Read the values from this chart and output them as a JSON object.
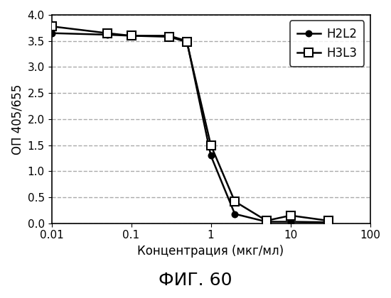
{
  "title": "ФИГ. 60",
  "ylabel": "ОП 405/655",
  "xlabel": "Концентрация (мкг/мл)",
  "xlim": [
    0.01,
    100
  ],
  "ylim": [
    0,
    4
  ],
  "yticks": [
    0,
    0.5,
    1.0,
    1.5,
    2.0,
    2.5,
    3.0,
    3.5,
    4.0
  ],
  "xticks": [
    0.01,
    0.1,
    1,
    10,
    100
  ],
  "xticklabels": [
    "0.01",
    "0.1",
    "1",
    "10",
    "100"
  ],
  "H2L2_x": [
    0.01,
    0.05,
    0.1,
    0.3,
    0.5,
    1.0,
    2.0,
    5.0,
    10.0,
    30.0
  ],
  "H2L2_y": [
    3.65,
    3.62,
    3.6,
    3.6,
    3.5,
    1.3,
    0.18,
    0.03,
    0.03,
    0.02
  ],
  "H3L3_x": [
    0.01,
    0.05,
    0.1,
    0.3,
    0.5,
    1.0,
    2.0,
    5.0,
    10.0,
    30.0
  ],
  "H3L3_y": [
    3.78,
    3.65,
    3.6,
    3.58,
    3.48,
    1.5,
    0.42,
    0.05,
    0.15,
    0.05
  ],
  "line_color": "#000000",
  "background_color": "#ffffff",
  "grid_color": "#aaaaaa",
  "legend_labels": [
    "H2L2",
    "H3L3"
  ],
  "title_fontsize": 18,
  "axis_label_fontsize": 12,
  "tick_fontsize": 11,
  "legend_fontsize": 12
}
